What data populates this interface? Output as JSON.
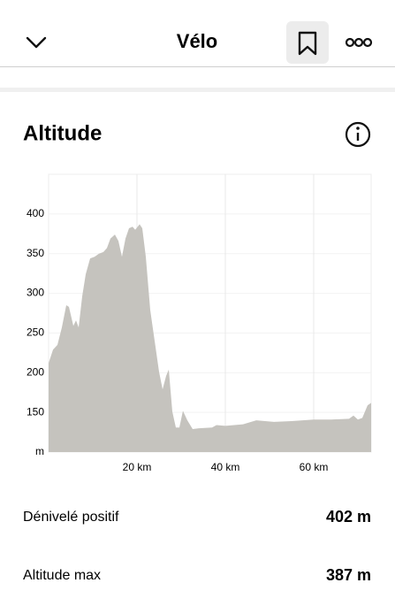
{
  "header": {
    "title": "Vélo"
  },
  "section": {
    "title": "Altitude"
  },
  "chart_data": {
    "type": "area",
    "color": "#c5c3be",
    "x": [
      0,
      1,
      2,
      3,
      4,
      4.6,
      5.6,
      6.2,
      6.8,
      7.6,
      8.4,
      9.4,
      10.4,
      11.4,
      12.4,
      13.2,
      14,
      15,
      15.8,
      16.6,
      17.4,
      18.2,
      19,
      19.6,
      20.6,
      21.2,
      22,
      23,
      24,
      25,
      25.8,
      26.6,
      27.2,
      28,
      28.8,
      29.6,
      30.4,
      31.4,
      32.6,
      34,
      37,
      38,
      40,
      42,
      44,
      47,
      49,
      51,
      55,
      60,
      64,
      68,
      69,
      70,
      71,
      72.2,
      73
    ],
    "values": [
      212,
      229,
      235,
      257,
      285,
      283,
      259,
      266,
      257,
      296,
      324,
      344,
      346,
      350,
      352,
      357,
      369,
      374,
      366,
      346,
      369,
      382,
      384,
      380,
      387,
      382,
      346,
      279,
      240,
      201,
      179,
      196,
      204,
      151,
      131,
      131,
      152,
      140,
      129,
      130,
      131,
      134,
      133,
      134,
      135,
      140,
      139,
      138,
      139,
      141,
      141,
      142,
      146,
      141,
      143,
      159,
      162
    ],
    "xlim": [
      0,
      73
    ],
    "ylim": [
      100,
      450
    ],
    "xticks": [
      {
        "value": 20,
        "label": "20 km"
      },
      {
        "value": 40,
        "label": "40 km"
      },
      {
        "value": 60,
        "label": "60 km"
      }
    ],
    "yticks": [
      {
        "value": 100,
        "label": "m"
      },
      150,
      200,
      250,
      300,
      350,
      400
    ],
    "grid": true
  },
  "stats": [
    {
      "label": "Dénivelé positif",
      "value": "402 m"
    },
    {
      "label": "Altitude max",
      "value": "387 m"
    }
  ]
}
